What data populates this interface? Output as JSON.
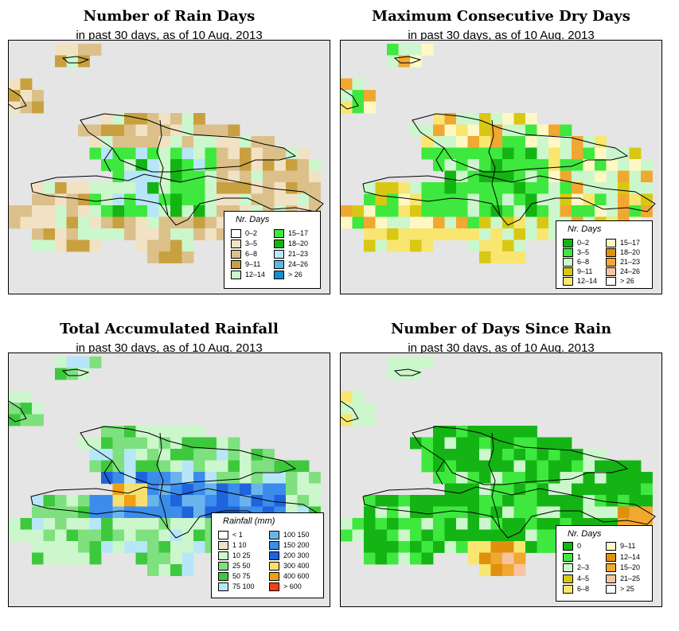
{
  "subtitle": "in past 30 days, as of  10 Aug. 2013",
  "panels": [
    {
      "id": "rain-days",
      "title": "Number of Rain Days",
      "legend_title": "Nr. Days",
      "legend": [
        {
          "label": "0–2",
          "color": "#ffffff"
        },
        {
          "label": "3–5",
          "color": "#f2e2c4"
        },
        {
          "label": "6–8",
          "color": "#dcc08a"
        },
        {
          "label": "9–11",
          "color": "#c8a040"
        },
        {
          "label": "12–14",
          "color": "#ccf7cc"
        },
        {
          "label": "15–17",
          "color": "#3ee83e"
        },
        {
          "label": "18–20",
          "color": "#14b414"
        },
        {
          "label": "21–23",
          "color": "#b6e6f8"
        },
        {
          "label": "24–26",
          "color": "#58b8e8"
        },
        {
          "label": "> 26",
          "color": "#1090d0"
        }
      ]
    },
    {
      "id": "dry-days",
      "title": "Maximum Consecutive Dry Days",
      "legend_title": "Nr. Days",
      "legend": [
        {
          "label": "0–2",
          "color": "#14b414"
        },
        {
          "label": "3–5",
          "color": "#3ee83e"
        },
        {
          "label": "6–8",
          "color": "#ccf7cc"
        },
        {
          "label": "9–11",
          "color": "#d8c814"
        },
        {
          "label": "12–14",
          "color": "#f8e670"
        },
        {
          "label": "15–17",
          "color": "#fff8c4"
        },
        {
          "label": "18–20",
          "color": "#e0900c"
        },
        {
          "label": "21–23",
          "color": "#f0a830"
        },
        {
          "label": "24–26",
          "color": "#f8c4a0"
        },
        {
          "label": "> 26",
          "color": "#ffffff"
        }
      ]
    },
    {
      "id": "rainfall",
      "title": "Total Accumulated Rainfall",
      "legend_title": "Rainfall (mm)",
      "legend": [
        {
          "label": "< 1",
          "color": "#ffffff"
        },
        {
          "label": "1    10",
          "color": "#f2e2c4"
        },
        {
          "label": "10    25",
          "color": "#ccf7cc"
        },
        {
          "label": "25    50",
          "color": "#7ee07e"
        },
        {
          "label": "50    75",
          "color": "#3ec83e"
        },
        {
          "label": "75   100",
          "color": "#b6e6f8"
        },
        {
          "label": "100   150",
          "color": "#6ab4ec"
        },
        {
          "label": "150   200",
          "color": "#3c8cec"
        },
        {
          "label": "200   300",
          "color": "#1e64dc"
        },
        {
          "label": "300   400",
          "color": "#f8e070"
        },
        {
          "label": "400   600",
          "color": "#f0a010"
        },
        {
          "label": "> 600",
          "color": "#f04010"
        }
      ]
    },
    {
      "id": "since-rain",
      "title": "Number of Days Since Rain",
      "legend_title": "Nr. Days",
      "legend": [
        {
          "label": "0",
          "color": "#14b414"
        },
        {
          "label": "1",
          "color": "#3ee83e"
        },
        {
          "label": "2–3",
          "color": "#ccf7cc"
        },
        {
          "label": "4–5",
          "color": "#d8c814"
        },
        {
          "label": "6–8",
          "color": "#f8e670"
        },
        {
          "label": "9–11",
          "color": "#fff8c4"
        },
        {
          "label": "12–14",
          "color": "#e0900c"
        },
        {
          "label": "15–20",
          "color": "#f0a830"
        },
        {
          "label": "21–25",
          "color": "#f8c4a0"
        },
        {
          "label": "> 25",
          "color": "#ffffff"
        }
      ]
    }
  ]
}
